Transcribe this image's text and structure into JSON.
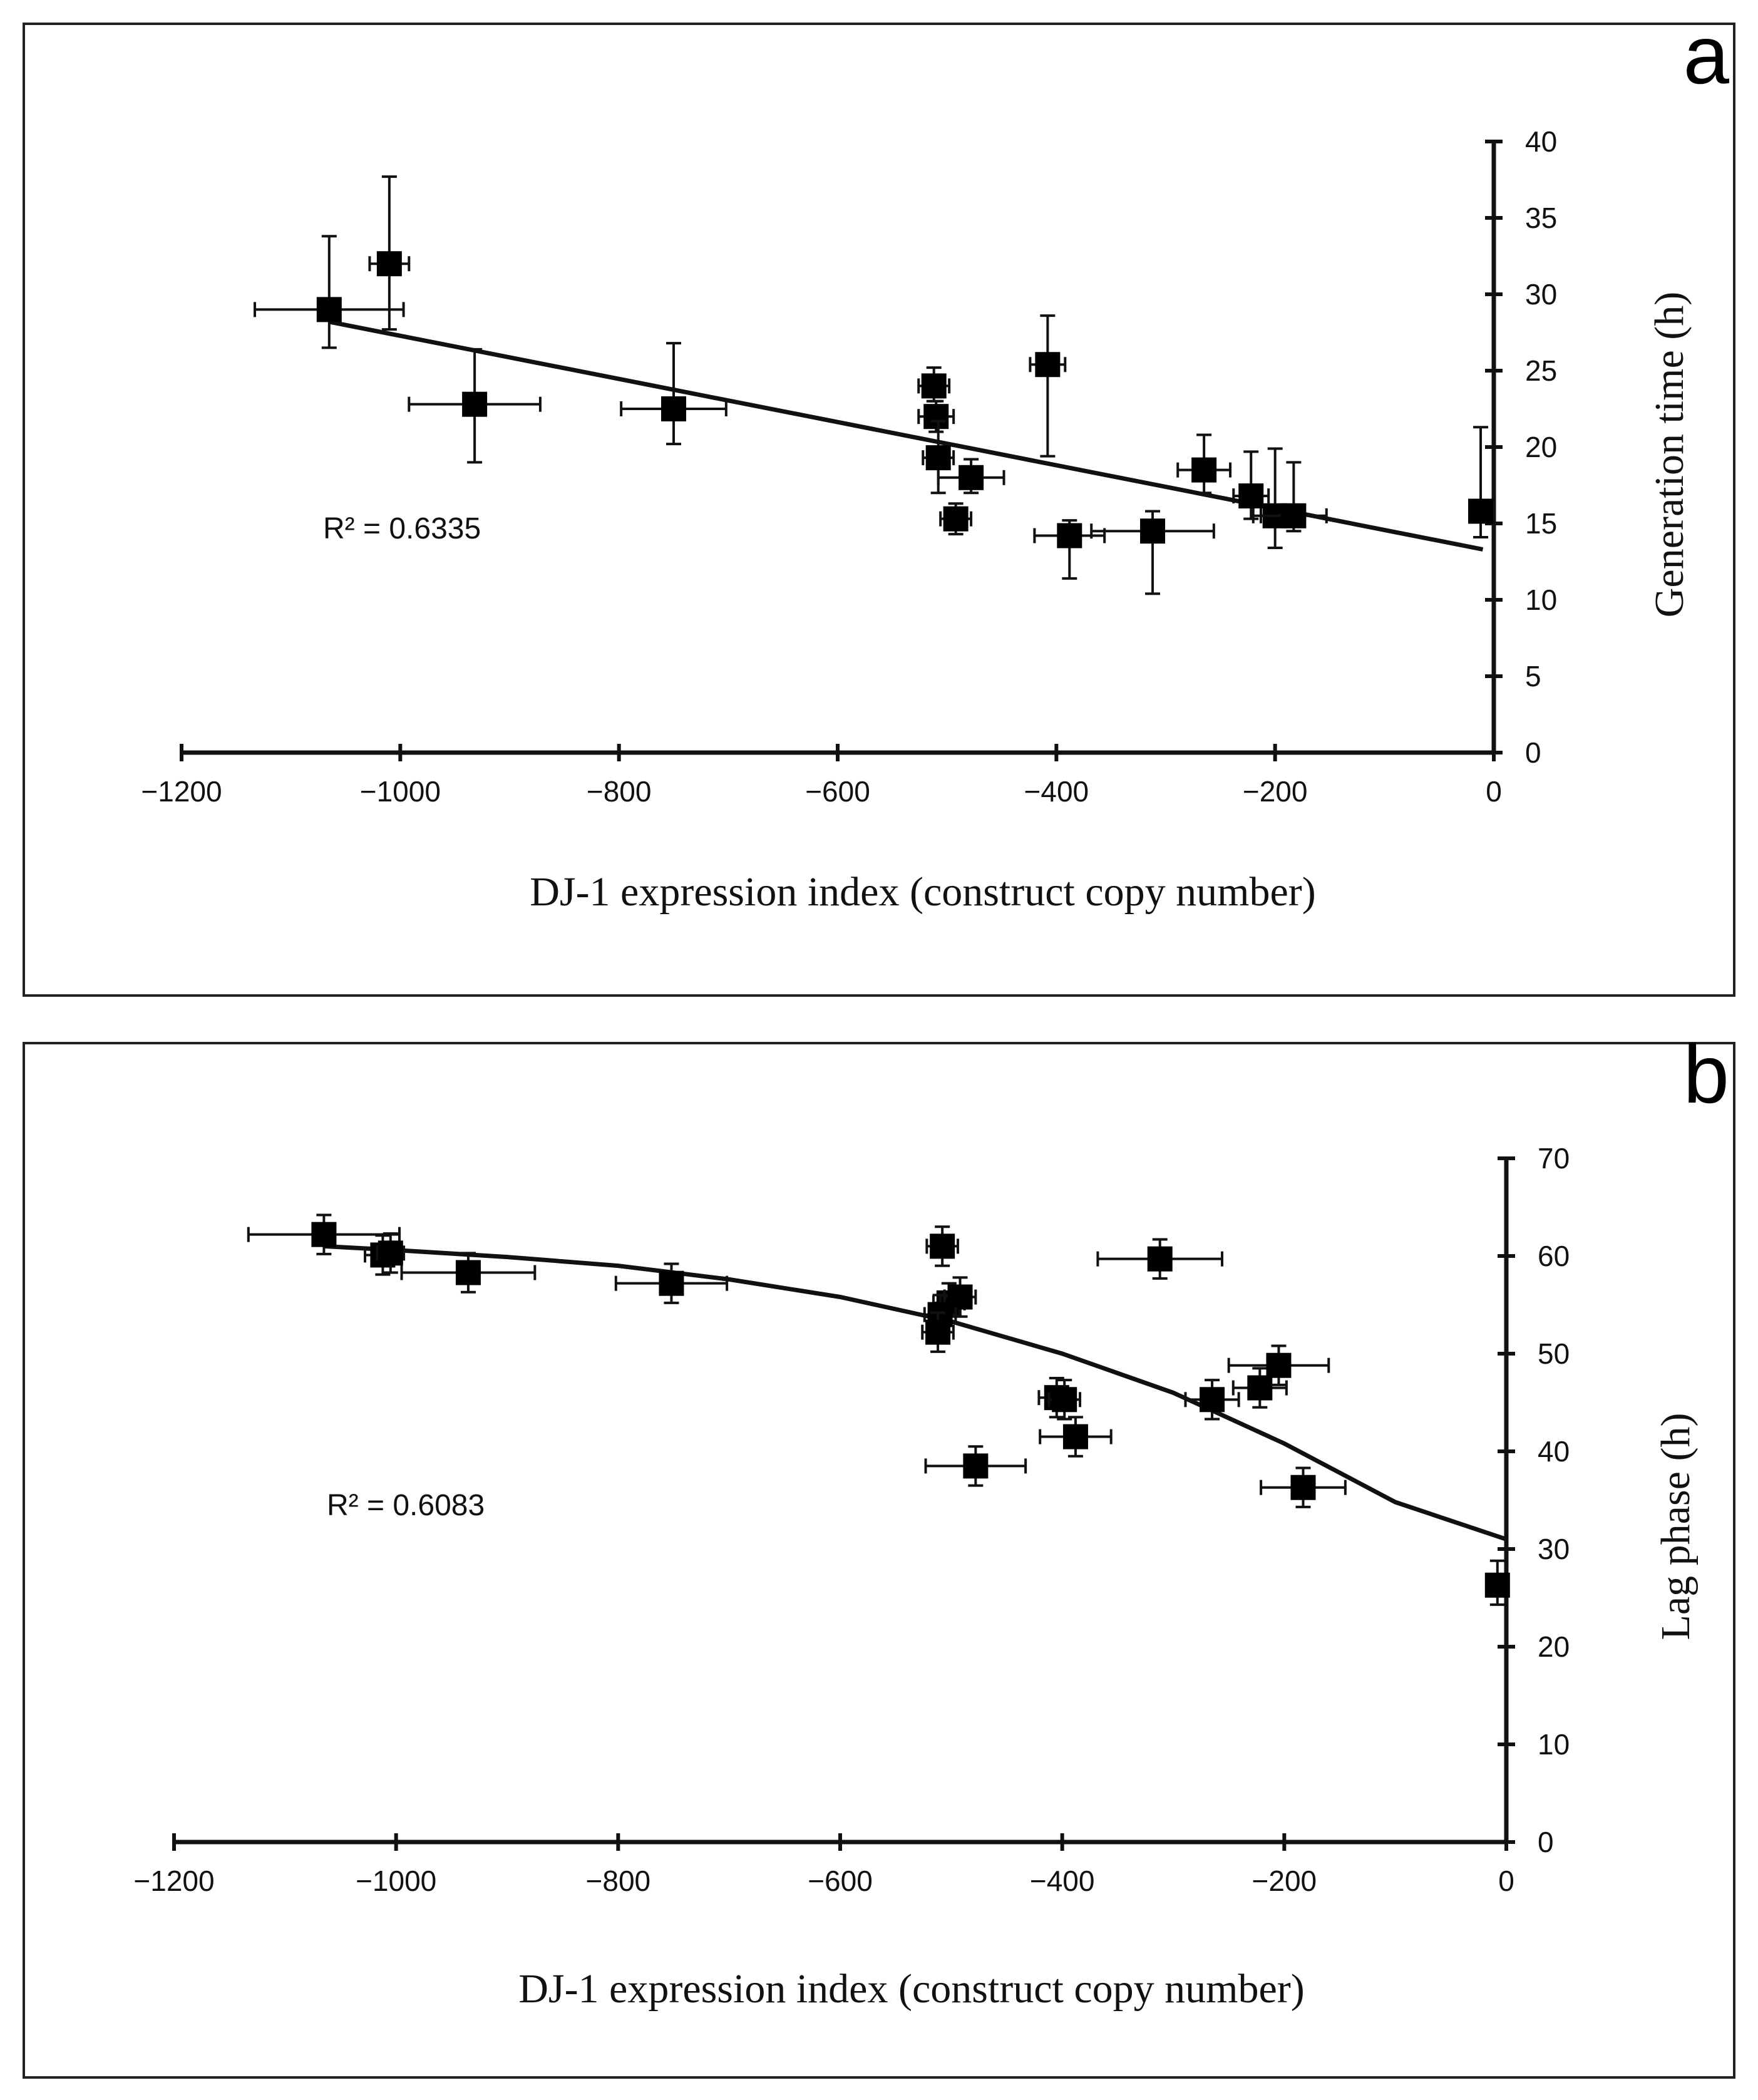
{
  "chart_data": [
    {
      "panel_label": "a",
      "type": "scatter",
      "xlabel": "DJ-1 expression index (construct copy number)",
      "ylabel": "Generation time (h)",
      "xlim": [
        -1200,
        0
      ],
      "ylim": [
        0,
        40
      ],
      "xticks": [
        -1200,
        -1000,
        -800,
        -600,
        -400,
        -200,
        0
      ],
      "yticks": [
        0,
        5,
        10,
        15,
        20,
        25,
        30,
        35,
        40
      ],
      "annotation": "R² = 0.6335",
      "trendline": {
        "type": "linear",
        "x": [
          -1065,
          -10
        ],
        "y": [
          28.2,
          13.3
        ]
      },
      "points": [
        {
          "x": -1065,
          "y": 29.0,
          "xerr": 68,
          "yerr_low": 2.5,
          "yerr_high": 4.8
        },
        {
          "x": -1010,
          "y": 32.0,
          "xerr": 18,
          "yerr_low": 4.3,
          "yerr_high": 5.7
        },
        {
          "x": -932,
          "y": 22.8,
          "xerr": 60,
          "yerr_low": 3.8,
          "yerr_high": 3.6
        },
        {
          "x": -750,
          "y": 22.5,
          "xerr": 48,
          "yerr_low": 2.3,
          "yerr_high": 4.3
        },
        {
          "x": -512,
          "y": 24.0,
          "xerr": 14,
          "yerr_low": 1.0,
          "yerr_high": 1.2
        },
        {
          "x": -510,
          "y": 22.0,
          "xerr": 16,
          "yerr_low": 1.0,
          "yerr_high": 1.0
        },
        {
          "x": -508,
          "y": 19.3,
          "xerr": 14,
          "yerr_low": 2.3,
          "yerr_high": 2.4
        },
        {
          "x": -492,
          "y": 15.3,
          "xerr": 14,
          "yerr_low": 1.0,
          "yerr_high": 1.0
        },
        {
          "x": -478,
          "y": 18.0,
          "xerr": 30,
          "yerr_low": 1.0,
          "yerr_high": 1.2
        },
        {
          "x": -408,
          "y": 25.4,
          "xerr": 16,
          "yerr_low": 6.0,
          "yerr_high": 3.2
        },
        {
          "x": -388,
          "y": 14.2,
          "xerr": 32,
          "yerr_low": 2.8,
          "yerr_high": 1.0
        },
        {
          "x": -312,
          "y": 14.5,
          "xerr": 56,
          "yerr_low": 4.1,
          "yerr_high": 1.3
        },
        {
          "x": -265,
          "y": 18.5,
          "xerr": 24,
          "yerr_low": 1.5,
          "yerr_high": 2.3
        },
        {
          "x": -222,
          "y": 16.8,
          "xerr": 16,
          "yerr_low": 1.5,
          "yerr_high": 2.9
        },
        {
          "x": -200,
          "y": 15.5,
          "xerr": 20,
          "yerr_low": 2.1,
          "yerr_high": 4.4
        },
        {
          "x": -183,
          "y": 15.5,
          "xerr": 30,
          "yerr_low": 1.0,
          "yerr_high": 3.5
        },
        {
          "x": -12,
          "y": 15.8,
          "xerr": 6,
          "yerr_low": 1.7,
          "yerr_high": 5.5
        }
      ]
    },
    {
      "panel_label": "b",
      "type": "scatter",
      "xlabel": "DJ-1 expression index (construct copy number)",
      "ylabel": "Lag phase (h)",
      "xlim": [
        -1200,
        0
      ],
      "ylim": [
        0,
        70
      ],
      "xticks": [
        -1200,
        -1000,
        -800,
        -600,
        -400,
        -200,
        0
      ],
      "yticks": [
        0,
        10,
        20,
        30,
        40,
        50,
        60,
        70
      ],
      "annotation": "R² = 0.6083",
      "trendline": {
        "type": "polynomial",
        "x": [
          -1065,
          -1000,
          -900,
          -800,
          -700,
          -600,
          -500,
          -400,
          -300,
          -200,
          -100,
          0
        ],
        "y": [
          61.0,
          60.6,
          59.9,
          59.0,
          57.6,
          55.8,
          53.3,
          50.0,
          46.0,
          40.8,
          34.8,
          31.0
        ]
      },
      "points": [
        {
          "x": -1065,
          "y": 62.2,
          "xerr": 68,
          "yerr_low": 2.0,
          "yerr_high": 2.0
        },
        {
          "x": -1012,
          "y": 60.1,
          "xerr": 16,
          "yerr_low": 2.0,
          "yerr_high": 2.0
        },
        {
          "x": -1005,
          "y": 60.3,
          "xerr": 12,
          "yerr_low": 2.0,
          "yerr_high": 2.0
        },
        {
          "x": -935,
          "y": 58.3,
          "xerr": 60,
          "yerr_low": 2.0,
          "yerr_high": 2.0
        },
        {
          "x": -752,
          "y": 57.2,
          "xerr": 50,
          "yerr_low": 2.0,
          "yerr_high": 2.0
        },
        {
          "x": -508,
          "y": 61.0,
          "xerr": 14,
          "yerr_low": 2.0,
          "yerr_high": 2.0
        },
        {
          "x": -502,
          "y": 55.2,
          "xerr": 14,
          "yerr_low": 2.0,
          "yerr_high": 2.0
        },
        {
          "x": -492,
          "y": 55.8,
          "xerr": 14,
          "yerr_low": 2.0,
          "yerr_high": 2.0
        },
        {
          "x": -510,
          "y": 54.0,
          "xerr": 14,
          "yerr_low": 2.0,
          "yerr_high": 2.0
        },
        {
          "x": -512,
          "y": 52.2,
          "xerr": 14,
          "yerr_low": 2.0,
          "yerr_high": 2.0
        },
        {
          "x": -478,
          "y": 38.5,
          "xerr": 45,
          "yerr_low": 2.0,
          "yerr_high": 2.0
        },
        {
          "x": -405,
          "y": 45.5,
          "xerr": 16,
          "yerr_low": 2.0,
          "yerr_high": 2.0
        },
        {
          "x": -398,
          "y": 45.3,
          "xerr": 14,
          "yerr_low": 2.0,
          "yerr_high": 2.0
        },
        {
          "x": -388,
          "y": 41.5,
          "xerr": 32,
          "yerr_low": 2.0,
          "yerr_high": 2.0
        },
        {
          "x": -312,
          "y": 59.7,
          "xerr": 56,
          "yerr_low": 2.0,
          "yerr_high": 2.0
        },
        {
          "x": -265,
          "y": 45.3,
          "xerr": 24,
          "yerr_low": 2.0,
          "yerr_high": 2.0
        },
        {
          "x": -222,
          "y": 46.5,
          "xerr": 24,
          "yerr_low": 2.0,
          "yerr_high": 2.0
        },
        {
          "x": -205,
          "y": 48.8,
          "xerr": 45,
          "yerr_low": 2.0,
          "yerr_high": 2.0
        },
        {
          "x": -183,
          "y": 36.3,
          "xerr": 38,
          "yerr_low": 2.0,
          "yerr_high": 2.0
        },
        {
          "x": -8,
          "y": 26.3,
          "xerr": 5,
          "yerr_low": 2.0,
          "yerr_high": 2.5
        }
      ]
    }
  ]
}
